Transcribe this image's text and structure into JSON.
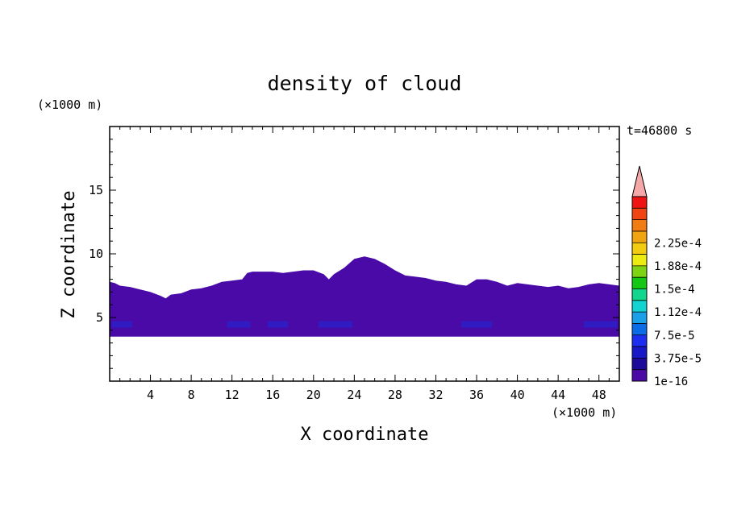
{
  "chart_data": {
    "type": "heatmap",
    "title": "density of cloud",
    "time_label": "t=46800 s",
    "xlabel": "X coordinate",
    "ylabel": "Z coordinate",
    "x_unit": "(×1000 m)",
    "y_unit": "(×1000 m)",
    "xlim": [
      0,
      50
    ],
    "ylim": [
      0,
      20
    ],
    "x_ticks": [
      "4",
      "8",
      "12",
      "16",
      "20",
      "24",
      "28",
      "32",
      "36",
      "40",
      "44",
      "48"
    ],
    "y_ticks": [
      "5",
      "10",
      "15"
    ],
    "cloud": {
      "base_z": 3.5,
      "top_profile_x": [
        0,
        0.5,
        1,
        2,
        3,
        4,
        5,
        5.5,
        6,
        7,
        8,
        9,
        10,
        11,
        12,
        13,
        13.5,
        14,
        15,
        16,
        17,
        18,
        19,
        20,
        21,
        21.5,
        22,
        23,
        24,
        25,
        26,
        27,
        28,
        29,
        30,
        31,
        32,
        33,
        34,
        35,
        36,
        37,
        38,
        39,
        40,
        41,
        42,
        43,
        44,
        45,
        46,
        47,
        48,
        49,
        50
      ],
      "top_profile_z": [
        7.8,
        7.7,
        7.5,
        7.4,
        7.2,
        7.0,
        6.7,
        6.5,
        6.8,
        6.9,
        7.2,
        7.3,
        7.5,
        7.8,
        7.9,
        8.0,
        8.5,
        8.6,
        8.6,
        8.6,
        8.5,
        8.6,
        8.7,
        8.7,
        8.4,
        8.0,
        8.4,
        8.9,
        9.6,
        9.8,
        9.6,
        9.2,
        8.7,
        8.3,
        8.2,
        8.1,
        7.9,
        7.8,
        7.6,
        7.5,
        8.0,
        8.0,
        7.8,
        7.5,
        7.7,
        7.6,
        7.5,
        7.4,
        7.5,
        7.3,
        7.4,
        7.6,
        7.7,
        7.6,
        7.5
      ],
      "fill_color": "#4a0aa8",
      "patch_color": "#1a2ed8",
      "level": "1e-16"
    },
    "colorbar": {
      "tick_labels": [
        "1e-16",
        "3.75e-5",
        "7.5e-5",
        "1.12e-4",
        "1.5e-4",
        "1.88e-4",
        "2.25e-4"
      ],
      "colors": [
        "#4b0aa6",
        "#1c0a9c",
        "#1818c8",
        "#1c2ef0",
        "#0a6ce6",
        "#1aa0e8",
        "#12d2d2",
        "#11d68c",
        "#12c812",
        "#7ed412",
        "#ecec12",
        "#f2cc10",
        "#f0a412",
        "#f07c12",
        "#f04412",
        "#ee1414"
      ],
      "extend_color": "#f4a8a8"
    }
  }
}
